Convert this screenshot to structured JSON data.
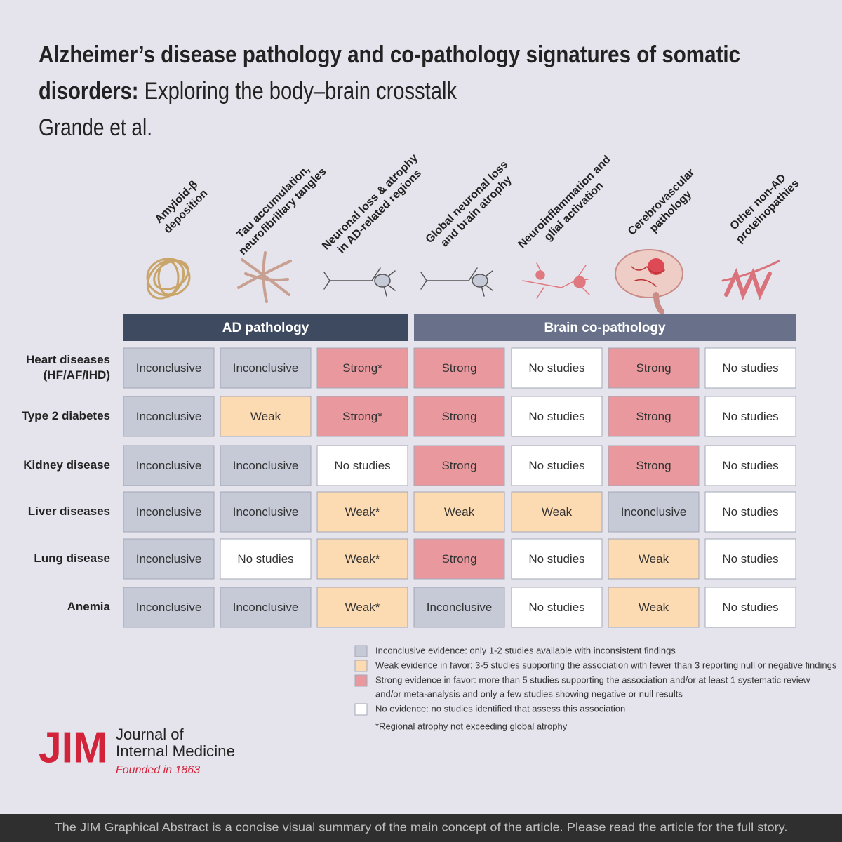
{
  "header": {
    "title_bold": "Alzheimer’s disease pathology and co-pathology signatures of somatic",
    "title_bold_2": "disorders:",
    "title_rest": " Exploring the body–brain crosstalk",
    "authors": "Grande et al."
  },
  "columns": [
    [
      "Amyloid-β",
      "deposition"
    ],
    [
      "Tau accumulation,",
      "neurofibrillary tangles"
    ],
    [
      "Neuronal loss & atrophy",
      "in AD-related regions"
    ],
    [
      "Global neuronal loss",
      "and brain atrophy"
    ],
    [
      "Neuroinflammation and",
      "glial activation"
    ],
    [
      "Cerebrovascular",
      "pathology"
    ],
    [
      "Other non-AD",
      "proteinopathies"
    ]
  ],
  "groups": [
    {
      "label": "AD pathology",
      "color": "#3e4a5f"
    },
    {
      "label": "Brain co-pathology",
      "color": "#687189"
    }
  ],
  "rows": [
    {
      "label": [
        "Heart diseases",
        "(HF/AF/IHD)"
      ],
      "cells": [
        {
          "text": "Inconclusive",
          "color": "#c6cad7"
        },
        {
          "text": "Inconclusive",
          "color": "#c6cad7"
        },
        {
          "text": "Strong*",
          "color": "#e9999e"
        },
        {
          "text": "Strong",
          "color": "#e9999e"
        },
        {
          "text": "No studies",
          "color": "#ffffff"
        },
        {
          "text": "Strong",
          "color": "#e9999e"
        },
        {
          "text": "No studies",
          "color": "#ffffff"
        }
      ]
    },
    {
      "label": [
        "Type 2 diabetes"
      ],
      "cells": [
        {
          "text": "Inconclusive",
          "color": "#c6cad7"
        },
        {
          "text": "Weak",
          "color": "#fcdab2"
        },
        {
          "text": "Strong*",
          "color": "#e9999e"
        },
        {
          "text": "Strong",
          "color": "#e9999e"
        },
        {
          "text": "No studies",
          "color": "#ffffff"
        },
        {
          "text": "Strong",
          "color": "#e9999e"
        },
        {
          "text": "No studies",
          "color": "#ffffff"
        }
      ]
    },
    {
      "label": [
        "Kidney disease"
      ],
      "cells": [
        {
          "text": "Inconclusive",
          "color": "#c6cad7"
        },
        {
          "text": "Inconclusive",
          "color": "#c6cad7"
        },
        {
          "text": "No studies",
          "color": "#ffffff"
        },
        {
          "text": "Strong",
          "color": "#e9999e"
        },
        {
          "text": "No studies",
          "color": "#ffffff"
        },
        {
          "text": "Strong",
          "color": "#e9999e"
        },
        {
          "text": "No studies",
          "color": "#ffffff"
        }
      ]
    },
    {
      "label": [
        "Liver diseases"
      ],
      "cells": [
        {
          "text": "Inconclusive",
          "color": "#c6cad7"
        },
        {
          "text": "Inconclusive",
          "color": "#c6cad7"
        },
        {
          "text": "Weak*",
          "color": "#fcdab2"
        },
        {
          "text": "Weak",
          "color": "#fcdab2"
        },
        {
          "text": "Weak",
          "color": "#fcdab2"
        },
        {
          "text": "Inconclusive",
          "color": "#c6cad7"
        },
        {
          "text": "No studies",
          "color": "#ffffff"
        }
      ]
    },
    {
      "label": [
        "Lung disease"
      ],
      "cells": [
        {
          "text": "Inconclusive",
          "color": "#c6cad7"
        },
        {
          "text": "No studies",
          "color": "#ffffff"
        },
        {
          "text": "Weak*",
          "color": "#fcdab2"
        },
        {
          "text": "Strong",
          "color": "#e9999e"
        },
        {
          "text": "No studies",
          "color": "#ffffff"
        },
        {
          "text": "Weak",
          "color": "#fcdab2"
        },
        {
          "text": "No studies",
          "color": "#ffffff"
        }
      ]
    },
    {
      "label": [
        "Anemia"
      ],
      "cells": [
        {
          "text": "Inconclusive",
          "color": "#c6cad7"
        },
        {
          "text": "Inconclusive",
          "color": "#c6cad7"
        },
        {
          "text": "Weak*",
          "color": "#fcdab2"
        },
        {
          "text": "Inconclusive",
          "color": "#c6cad7"
        },
        {
          "text": "No studies",
          "color": "#ffffff"
        },
        {
          "text": "Weak",
          "color": "#fcdab2"
        },
        {
          "text": "No studies",
          "color": "#ffffff"
        }
      ]
    }
  ],
  "legend": [
    {
      "color": "#c6cad7",
      "lines": [
        "Inconclusive evidence: only 1-2 studies available with inconsistent findings"
      ]
    },
    {
      "color": "#fcdab2",
      "lines": [
        "Weak evidence in favor: 3-5 studies supporting the association with fewer than 3 reporting null or negative findings"
      ]
    },
    {
      "color": "#e9999e",
      "lines": [
        "Strong evidence in favor: more than 5 studies supporting the association and/or at least 1 systematic review",
        "and/or meta-analysis and only a few studies showing negative or null results"
      ]
    },
    {
      "color": "#ffffff",
      "lines": [
        "No evidence: no studies identified that assess this association"
      ]
    }
  ],
  "footnote": "*Regional atrophy not exceeding global atrophy",
  "logo": {
    "mark": "JIM",
    "name_1": "Journal of",
    "name_2": "Internal Medicine",
    "founded": "Founded in 1863"
  },
  "footer": "The JIM Graphical Abstract is a concise visual summary of the main concept of the article. Please read the article for the full story."
}
